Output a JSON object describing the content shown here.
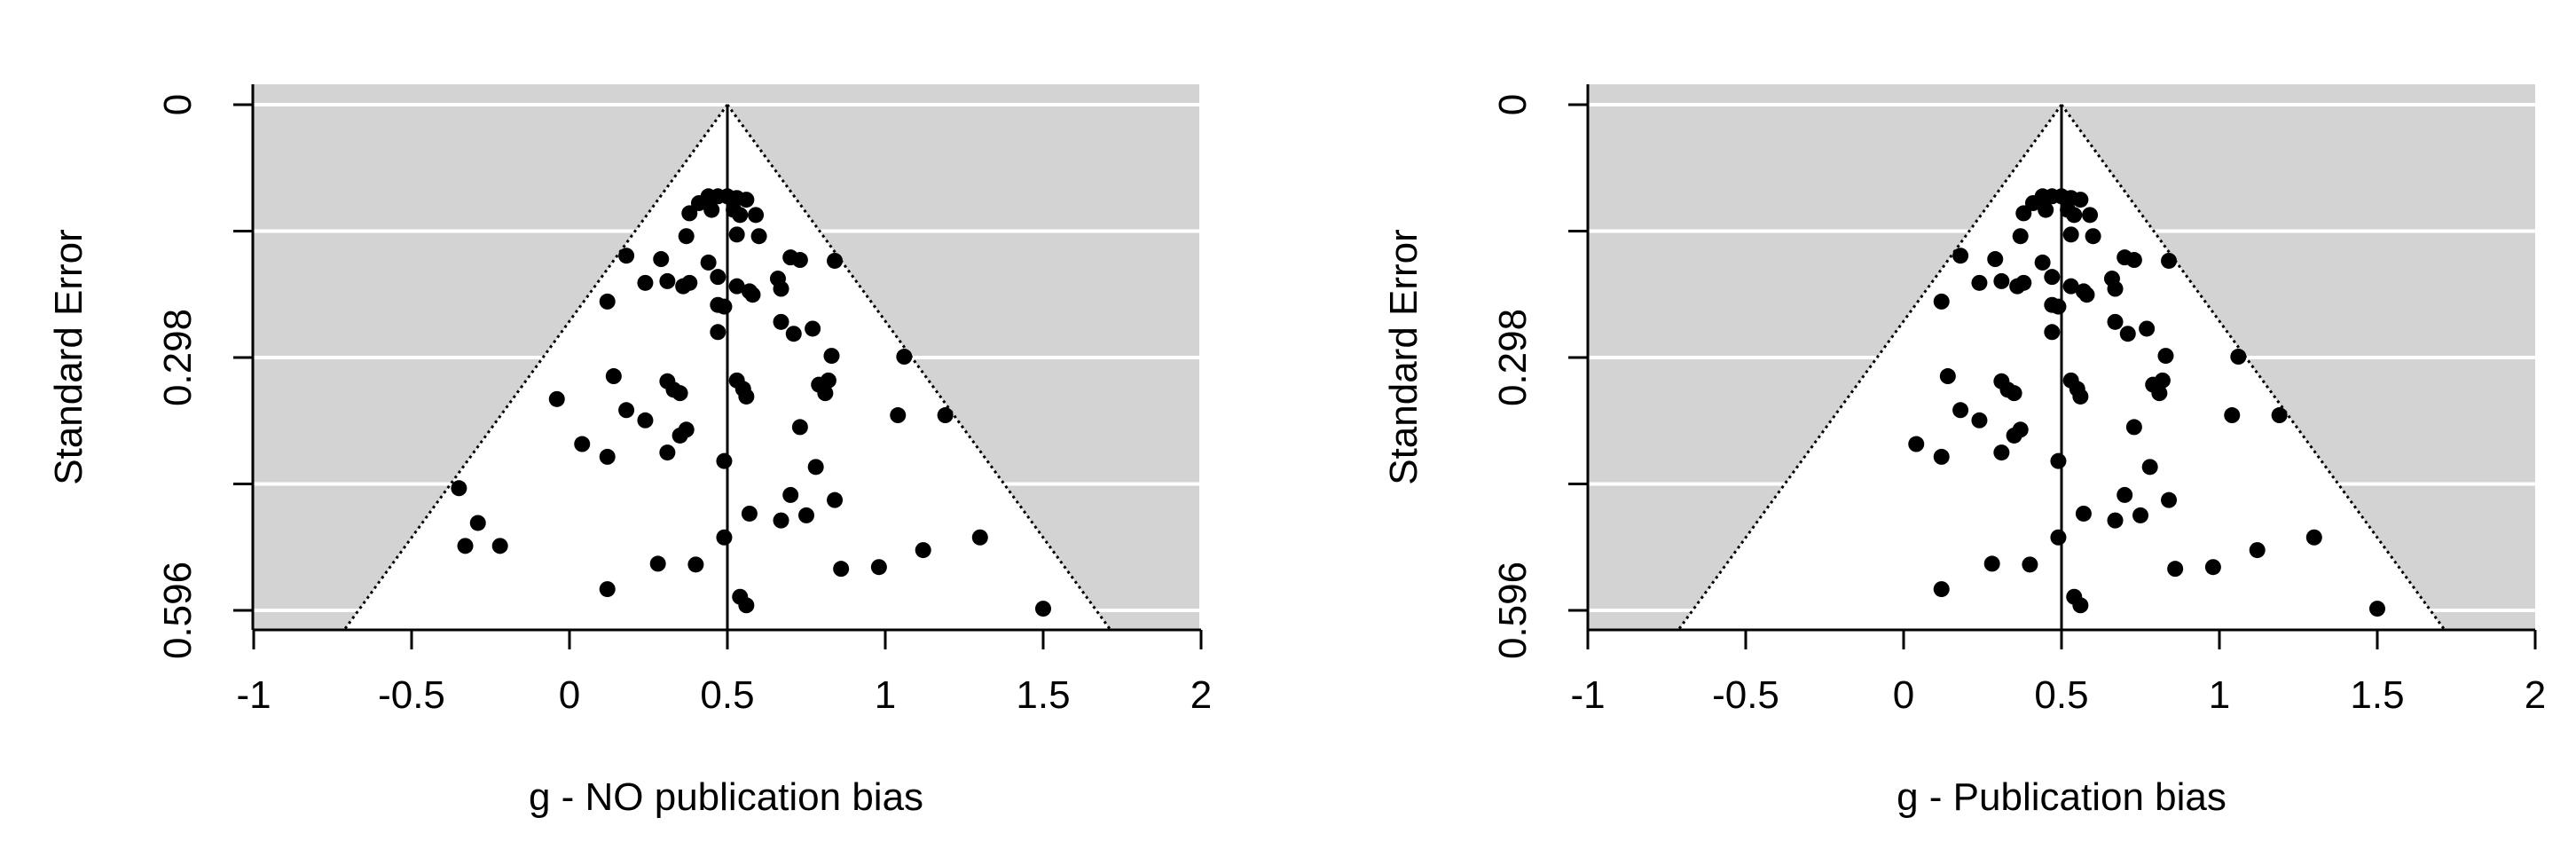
{
  "chart_data": [
    {
      "type": "scatter",
      "subtype": "funnel",
      "title": "",
      "xlabel": "g - NO publication bias",
      "ylabel": "Standard Error",
      "xlim": [
        -1,
        2
      ],
      "ylim": [
        0,
        0.596
      ],
      "y_reversed": true,
      "x_ticks": [
        "-1",
        "-0.5",
        "0",
        "0.5",
        "1",
        "1.5",
        "2"
      ],
      "y_ticks": [
        "0",
        "0.298",
        "0.596"
      ],
      "grid_y": [
        0,
        0.149,
        0.298,
        0.447,
        0.596
      ],
      "background": "#d3d3d3",
      "funnel_fill": "#ffffff",
      "estimate": 0.5,
      "points": [
        [
          0.41,
          0.116
        ],
        [
          0.44,
          0.108
        ],
        [
          0.47,
          0.108
        ],
        [
          0.5,
          0.108
        ],
        [
          0.53,
          0.11
        ],
        [
          0.56,
          0.112
        ],
        [
          0.38,
          0.128
        ],
        [
          0.45,
          0.124
        ],
        [
          0.52,
          0.124
        ],
        [
          0.54,
          0.13
        ],
        [
          0.59,
          0.13
        ],
        [
          0.37,
          0.155
        ],
        [
          0.53,
          0.153
        ],
        [
          0.6,
          0.155
        ],
        [
          0.18,
          0.178
        ],
        [
          0.29,
          0.182
        ],
        [
          0.44,
          0.186
        ],
        [
          0.7,
          0.18
        ],
        [
          0.73,
          0.183
        ],
        [
          0.84,
          0.184
        ],
        [
          0.24,
          0.21
        ],
        [
          0.31,
          0.208
        ],
        [
          0.36,
          0.214
        ],
        [
          0.38,
          0.21
        ],
        [
          0.47,
          0.203
        ],
        [
          0.53,
          0.214
        ],
        [
          0.57,
          0.22
        ],
        [
          0.66,
          0.205
        ],
        [
          0.67,
          0.217
        ],
        [
          0.12,
          0.232
        ],
        [
          0.47,
          0.236
        ],
        [
          0.49,
          0.238
        ],
        [
          0.58,
          0.224
        ],
        [
          0.67,
          0.256
        ],
        [
          0.71,
          0.27
        ],
        [
          0.77,
          0.264
        ],
        [
          0.47,
          0.268
        ],
        [
          0.83,
          0.296
        ],
        [
          1.06,
          0.297
        ],
        [
          0.14,
          0.32
        ],
        [
          0.31,
          0.326
        ],
        [
          0.33,
          0.336
        ],
        [
          0.35,
          0.34
        ],
        [
          0.53,
          0.325
        ],
        [
          0.55,
          0.335
        ],
        [
          0.56,
          0.344
        ],
        [
          0.79,
          0.33
        ],
        [
          0.81,
          0.34
        ],
        [
          0.82,
          0.325
        ],
        [
          -0.04,
          0.347
        ],
        [
          0.18,
          0.36
        ],
        [
          0.24,
          0.372
        ],
        [
          1.04,
          0.366
        ],
        [
          1.19,
          0.366
        ],
        [
          0.35,
          0.39
        ],
        [
          0.37,
          0.383
        ],
        [
          0.31,
          0.41
        ],
        [
          0.73,
          0.38
        ],
        [
          0.04,
          0.4
        ],
        [
          0.12,
          0.415
        ],
        [
          0.49,
          0.42
        ],
        [
          0.78,
          0.427
        ],
        [
          -0.35,
          0.452
        ],
        [
          0.7,
          0.46
        ],
        [
          0.84,
          0.466
        ],
        [
          -0.29,
          0.493
        ],
        [
          -0.33,
          0.52
        ],
        [
          -0.22,
          0.52
        ],
        [
          0.57,
          0.482
        ],
        [
          0.67,
          0.49
        ],
        [
          0.75,
          0.484
        ],
        [
          0.49,
          0.51
        ],
        [
          1.3,
          0.51
        ],
        [
          1.12,
          0.525
        ],
        [
          0.28,
          0.541
        ],
        [
          0.4,
          0.542
        ],
        [
          0.86,
          0.547
        ],
        [
          0.98,
          0.545
        ],
        [
          0.12,
          0.571
        ],
        [
          0.54,
          0.58
        ],
        [
          0.56,
          0.59
        ],
        [
          1.5,
          0.594
        ]
      ]
    },
    {
      "type": "scatter",
      "subtype": "funnel",
      "title": "",
      "xlabel": "g - Publication bias",
      "ylabel": "Standard Error",
      "xlim": [
        -1,
        2
      ],
      "ylim": [
        0,
        0.596
      ],
      "y_reversed": true,
      "x_ticks": [
        "-1",
        "-0.5",
        "0",
        "0.5",
        "1",
        "1.5",
        "2"
      ],
      "y_ticks": [
        "0",
        "0.298",
        "0.596"
      ],
      "grid_y": [
        0,
        0.149,
        0.298,
        0.447,
        0.596
      ],
      "background": "#d3d3d3",
      "funnel_fill": "#ffffff",
      "estimate": 0.5,
      "points": [
        [
          0.41,
          0.116
        ],
        [
          0.44,
          0.108
        ],
        [
          0.47,
          0.108
        ],
        [
          0.5,
          0.108
        ],
        [
          0.53,
          0.11
        ],
        [
          0.56,
          0.112
        ],
        [
          0.38,
          0.128
        ],
        [
          0.45,
          0.124
        ],
        [
          0.52,
          0.124
        ],
        [
          0.54,
          0.13
        ],
        [
          0.59,
          0.13
        ],
        [
          0.37,
          0.155
        ],
        [
          0.53,
          0.153
        ],
        [
          0.6,
          0.155
        ],
        [
          0.18,
          0.178
        ],
        [
          0.29,
          0.182
        ],
        [
          0.44,
          0.186
        ],
        [
          0.7,
          0.18
        ],
        [
          0.73,
          0.183
        ],
        [
          0.84,
          0.184
        ],
        [
          0.24,
          0.21
        ],
        [
          0.31,
          0.208
        ],
        [
          0.36,
          0.214
        ],
        [
          0.38,
          0.21
        ],
        [
          0.47,
          0.203
        ],
        [
          0.53,
          0.214
        ],
        [
          0.57,
          0.22
        ],
        [
          0.66,
          0.205
        ],
        [
          0.67,
          0.217
        ],
        [
          0.12,
          0.232
        ],
        [
          0.47,
          0.236
        ],
        [
          0.49,
          0.238
        ],
        [
          0.58,
          0.224
        ],
        [
          0.67,
          0.256
        ],
        [
          0.71,
          0.27
        ],
        [
          0.77,
          0.264
        ],
        [
          0.47,
          0.268
        ],
        [
          0.83,
          0.296
        ],
        [
          1.06,
          0.297
        ],
        [
          0.14,
          0.32
        ],
        [
          0.31,
          0.326
        ],
        [
          0.33,
          0.336
        ],
        [
          0.35,
          0.34
        ],
        [
          0.53,
          0.325
        ],
        [
          0.55,
          0.335
        ],
        [
          0.56,
          0.344
        ],
        [
          0.79,
          0.33
        ],
        [
          0.81,
          0.34
        ],
        [
          0.82,
          0.325
        ],
        [
          0.04,
          0.4
        ],
        [
          0.18,
          0.36
        ],
        [
          0.24,
          0.372
        ],
        [
          1.04,
          0.366
        ],
        [
          1.19,
          0.366
        ],
        [
          0.35,
          0.39
        ],
        [
          0.37,
          0.383
        ],
        [
          0.31,
          0.41
        ],
        [
          0.73,
          0.38
        ],
        [
          0.12,
          0.415
        ],
        [
          0.49,
          0.42
        ],
        [
          0.78,
          0.427
        ],
        [
          0.7,
          0.46
        ],
        [
          0.84,
          0.466
        ],
        [
          0.57,
          0.482
        ],
        [
          0.67,
          0.49
        ],
        [
          0.75,
          0.484
        ],
        [
          0.49,
          0.51
        ],
        [
          1.3,
          0.51
        ],
        [
          1.12,
          0.525
        ],
        [
          0.28,
          0.541
        ],
        [
          0.4,
          0.542
        ],
        [
          0.86,
          0.547
        ],
        [
          0.98,
          0.545
        ],
        [
          0.12,
          0.571
        ],
        [
          0.54,
          0.58
        ],
        [
          0.56,
          0.59
        ],
        [
          1.5,
          0.594
        ]
      ]
    }
  ]
}
